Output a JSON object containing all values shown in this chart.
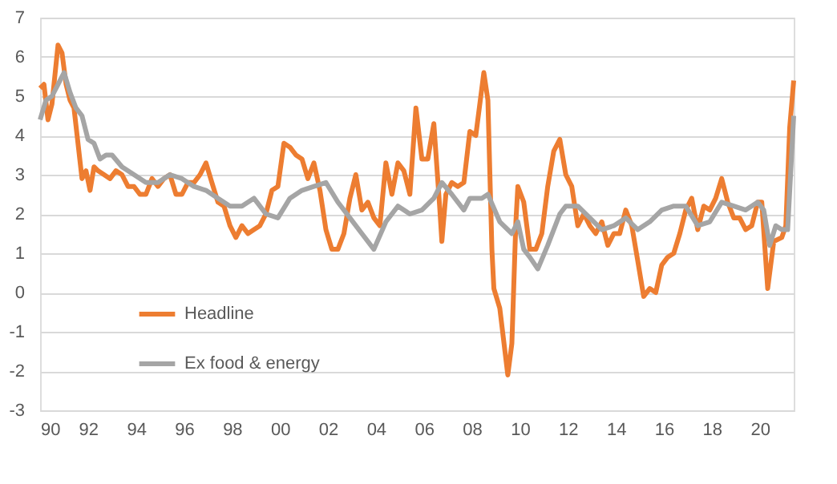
{
  "chart_data": {
    "type": "line",
    "ylim": [
      -3,
      7
    ],
    "yticks": [
      -3,
      -2,
      -1,
      0,
      1,
      2,
      3,
      4,
      5,
      6,
      7
    ],
    "xlim": [
      "1990-01",
      "2021-06"
    ],
    "xticks": [
      {
        "value": "1990",
        "label": "90"
      },
      {
        "value": "1992",
        "label": "92"
      },
      {
        "value": "1994",
        "label": "94"
      },
      {
        "value": "1996",
        "label": "96"
      },
      {
        "value": "1998",
        "label": "98"
      },
      {
        "value": "2000",
        "label": "00"
      },
      {
        "value": "2002",
        "label": "02"
      },
      {
        "value": "2004",
        "label": "04"
      },
      {
        "value": "2006",
        "label": "06"
      },
      {
        "value": "2008",
        "label": "08"
      },
      {
        "value": "2010",
        "label": "10"
      },
      {
        "value": "2012",
        "label": "12"
      },
      {
        "value": "2014",
        "label": "14"
      },
      {
        "value": "2016",
        "label": "16"
      },
      {
        "value": "2018",
        "label": "18"
      },
      {
        "value": "2020",
        "label": "20"
      }
    ],
    "grid": "y",
    "legend": "bottom left",
    "line_style": "solid",
    "marker": "none",
    "series": [
      {
        "name": "Headline",
        "color": "#ed7d31",
        "x": [
          "1990-01",
          "1990-03",
          "1990-05",
          "1990-07",
          "1990-10",
          "1990-12",
          "1991-02",
          "1991-04",
          "1991-06",
          "1991-08",
          "1991-10",
          "1991-12",
          "1992-02",
          "1992-04",
          "1992-06",
          "1992-09",
          "1992-12",
          "1993-03",
          "1993-06",
          "1993-09",
          "1993-12",
          "1994-03",
          "1994-06",
          "1994-09",
          "1994-12",
          "1995-03",
          "1995-06",
          "1995-09",
          "1995-12",
          "1996-03",
          "1996-06",
          "1996-09",
          "1996-12",
          "1997-03",
          "1997-06",
          "1997-09",
          "1997-12",
          "1998-03",
          "1998-06",
          "1998-09",
          "1998-12",
          "1999-03",
          "1999-06",
          "1999-09",
          "1999-12",
          "2000-03",
          "2000-06",
          "2000-09",
          "2000-12",
          "2001-03",
          "2001-06",
          "2001-09",
          "2001-12",
          "2002-03",
          "2002-06",
          "2002-09",
          "2002-12",
          "2003-03",
          "2003-06",
          "2003-09",
          "2003-12",
          "2004-03",
          "2004-06",
          "2004-09",
          "2004-12",
          "2005-03",
          "2005-06",
          "2005-09",
          "2005-12",
          "2006-03",
          "2006-06",
          "2006-09",
          "2006-10",
          "2006-12",
          "2007-03",
          "2007-06",
          "2007-09",
          "2007-12",
          "2008-03",
          "2008-07",
          "2008-09",
          "2008-11",
          "2008-12",
          "2009-03",
          "2009-07",
          "2009-09",
          "2009-11",
          "2009-12",
          "2010-03",
          "2010-06",
          "2010-09",
          "2010-12",
          "2011-03",
          "2011-06",
          "2011-09",
          "2011-12",
          "2012-03",
          "2012-06",
          "2012-09",
          "2012-12",
          "2013-03",
          "2013-06",
          "2013-09",
          "2013-12",
          "2014-03",
          "2014-06",
          "2014-09",
          "2014-12",
          "2015-03",
          "2015-06",
          "2015-09",
          "2015-12",
          "2016-03",
          "2016-06",
          "2016-09",
          "2016-12",
          "2017-03",
          "2017-06",
          "2017-09",
          "2017-12",
          "2018-03",
          "2018-06",
          "2018-09",
          "2018-12",
          "2019-03",
          "2019-06",
          "2019-09",
          "2019-12",
          "2020-02",
          "2020-05",
          "2020-08",
          "2020-12",
          "2021-02",
          "2021-04",
          "2021-06"
        ],
        "values": [
          5.2,
          5.3,
          4.4,
          4.8,
          6.3,
          6.1,
          5.3,
          4.9,
          4.7,
          3.8,
          2.9,
          3.1,
          2.6,
          3.2,
          3.1,
          3.0,
          2.9,
          3.1,
          3.0,
          2.7,
          2.7,
          2.5,
          2.5,
          2.9,
          2.7,
          2.9,
          3.0,
          2.5,
          2.5,
          2.8,
          2.8,
          3.0,
          3.3,
          2.8,
          2.3,
          2.2,
          1.7,
          1.4,
          1.7,
          1.5,
          1.6,
          1.7,
          2.0,
          2.6,
          2.7,
          3.8,
          3.7,
          3.5,
          3.4,
          2.9,
          3.3,
          2.6,
          1.6,
          1.1,
          1.1,
          1.5,
          2.4,
          3.0,
          2.1,
          2.3,
          1.9,
          1.7,
          3.3,
          2.5,
          3.3,
          3.1,
          2.5,
          4.7,
          3.4,
          3.4,
          4.3,
          2.1,
          1.3,
          2.5,
          2.8,
          2.7,
          2.8,
          4.1,
          4.0,
          5.6,
          4.9,
          1.1,
          0.1,
          -0.4,
          -2.1,
          -1.3,
          1.8,
          2.7,
          2.3,
          1.1,
          1.1,
          1.5,
          2.7,
          3.6,
          3.9,
          3.0,
          2.7,
          1.7,
          2.0,
          1.7,
          1.5,
          1.8,
          1.2,
          1.5,
          1.5,
          2.1,
          1.7,
          0.8,
          -0.1,
          0.1,
          0.0,
          0.7,
          0.9,
          1.0,
          1.5,
          2.1,
          2.4,
          1.6,
          2.2,
          2.1,
          2.4,
          2.9,
          2.3,
          1.9,
          1.9,
          1.6,
          1.7,
          2.3,
          2.3,
          0.1,
          1.3,
          1.4,
          1.7,
          4.2,
          5.4
        ]
      },
      {
        "name": "Ex food & energy",
        "color": "#a5a5a5",
        "x": [
          "1990-01",
          "1990-04",
          "1990-07",
          "1990-10",
          "1991-01",
          "1991-04",
          "1991-07",
          "1991-10",
          "1992-01",
          "1992-04",
          "1992-07",
          "1992-10",
          "1993-01",
          "1993-06",
          "1993-12",
          "1994-06",
          "1994-12",
          "1995-06",
          "1995-12",
          "1996-06",
          "1996-12",
          "1997-06",
          "1997-12",
          "1998-06",
          "1998-12",
          "1999-06",
          "1999-12",
          "2000-06",
          "2000-12",
          "2001-06",
          "2001-12",
          "2002-06",
          "2002-12",
          "2003-06",
          "2003-12",
          "2004-06",
          "2004-12",
          "2005-06",
          "2005-12",
          "2006-06",
          "2006-10",
          "2007-03",
          "2007-09",
          "2007-12",
          "2008-06",
          "2008-09",
          "2009-03",
          "2009-09",
          "2009-12",
          "2010-03",
          "2010-06",
          "2010-10",
          "2011-03",
          "2011-09",
          "2011-12",
          "2012-06",
          "2012-12",
          "2013-06",
          "2013-12",
          "2014-06",
          "2014-12",
          "2015-06",
          "2015-12",
          "2016-06",
          "2016-12",
          "2017-06",
          "2017-12",
          "2018-06",
          "2018-12",
          "2019-06",
          "2019-12",
          "2020-03",
          "2020-06",
          "2020-09",
          "2020-12",
          "2021-03",
          "2021-06"
        ],
        "values": [
          4.4,
          4.9,
          5.0,
          5.3,
          5.6,
          5.1,
          4.7,
          4.5,
          3.9,
          3.8,
          3.4,
          3.5,
          3.5,
          3.2,
          3.0,
          2.8,
          2.8,
          3.0,
          2.9,
          2.7,
          2.6,
          2.4,
          2.2,
          2.2,
          2.4,
          2.0,
          1.9,
          2.4,
          2.6,
          2.7,
          2.8,
          2.3,
          1.9,
          1.5,
          1.1,
          1.8,
          2.2,
          2.0,
          2.1,
          2.4,
          2.8,
          2.5,
          2.1,
          2.4,
          2.4,
          2.5,
          1.8,
          1.5,
          1.8,
          1.1,
          0.9,
          0.6,
          1.2,
          2.0,
          2.2,
          2.2,
          1.9,
          1.6,
          1.7,
          1.9,
          1.6,
          1.8,
          2.1,
          2.2,
          2.2,
          1.7,
          1.8,
          2.3,
          2.2,
          2.1,
          2.3,
          2.1,
          1.2,
          1.7,
          1.6,
          1.6,
          4.5
        ]
      }
    ]
  }
}
